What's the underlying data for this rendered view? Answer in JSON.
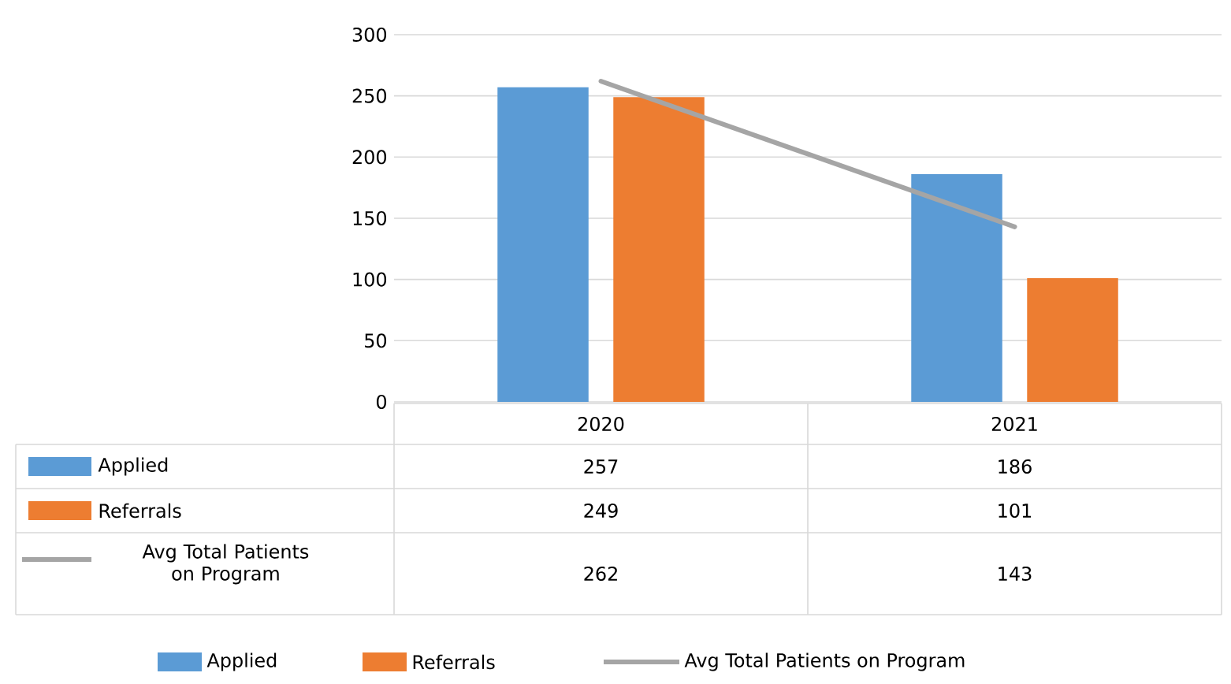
{
  "chart_data": {
    "type": "bar",
    "categories": [
      "2020",
      "2021"
    ],
    "series": [
      {
        "name": "Applied",
        "color": "#5b9bd5",
        "values": [
          257,
          186
        ]
      },
      {
        "name": "Referrals",
        "color": "#ed7d31",
        "values": [
          249,
          101
        ]
      },
      {
        "name": "Avg Total Patients on Program",
        "type": "line",
        "color": "#a5a5a5",
        "values": [
          262,
          143
        ]
      }
    ],
    "ylim": [
      0,
      300
    ],
    "yticks": [
      0,
      50,
      100,
      150,
      200,
      250,
      300
    ],
    "grid": "y",
    "legend": "bottom",
    "data_labels": true
  }
}
